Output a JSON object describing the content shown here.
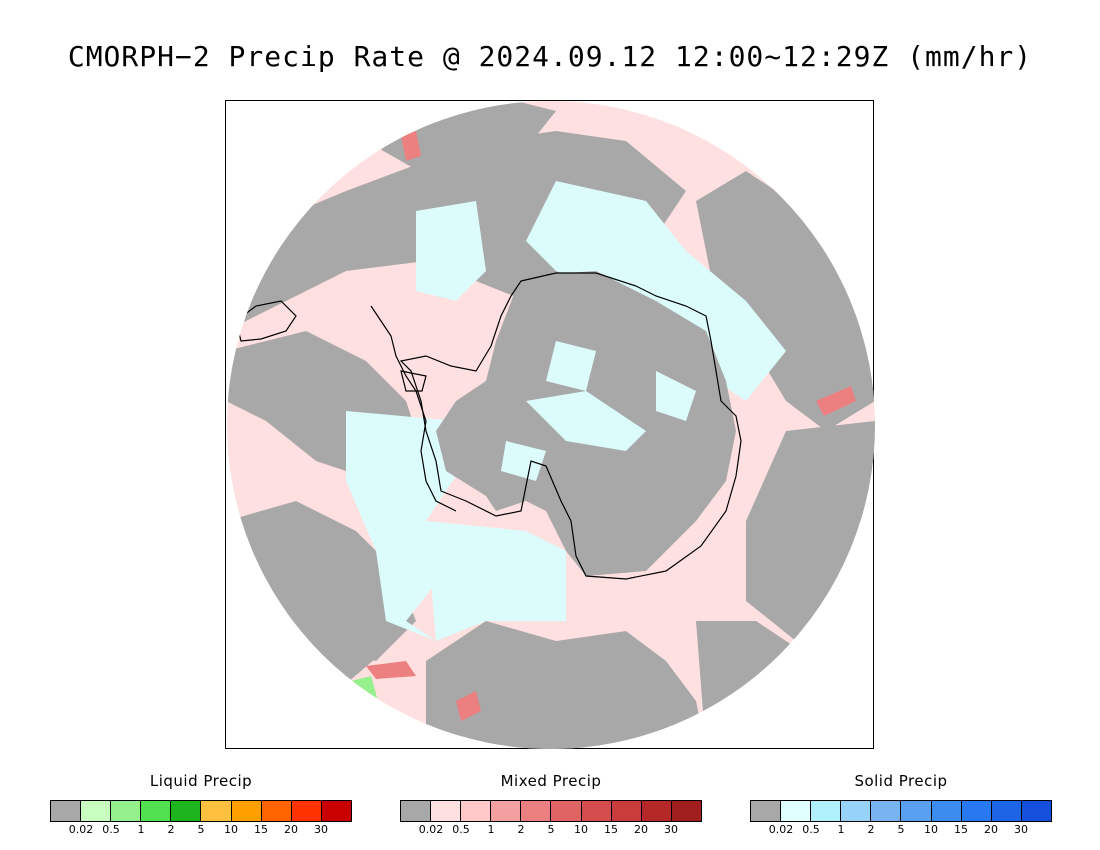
{
  "title": "CMORPH−2 Precip Rate @ 2024.09.12 12:00~12:29Z (mm/hr)",
  "colors": {
    "no_precip": "#a8a8a8",
    "ocean_light": "#ffe0e0",
    "solid_light": "#dcfcfc",
    "coastline": "#000000"
  },
  "legends": [
    {
      "title": "Liquid Precip",
      "colors": [
        "#a8a8a8",
        "#c8ffc0",
        "#96f08c",
        "#50e050",
        "#1eb41e",
        "#ffc040",
        "#ffa000",
        "#ff6400",
        "#ff3200",
        "#c80000"
      ],
      "ticks": [
        "0.02",
        "0.5",
        "1",
        "2",
        "5",
        "10",
        "15",
        "20",
        "30"
      ]
    },
    {
      "title": "Mixed Precip",
      "colors": [
        "#a8a8a8",
        "#ffe0e0",
        "#ffc8c8",
        "#f4a0a0",
        "#ec8080",
        "#e06464",
        "#d44c4c",
        "#c83c3c",
        "#b42828",
        "#a01e1e"
      ],
      "ticks": [
        "0.02",
        "0.5",
        "1",
        "2",
        "5",
        "10",
        "15",
        "20",
        "30"
      ]
    },
    {
      "title": "Solid Precip",
      "colors": [
        "#a8a8a8",
        "#e0ffff",
        "#b0f0fa",
        "#96d2fa",
        "#78b4f0",
        "#5aa0f0",
        "#3c8cf0",
        "#2878f0",
        "#1e64e6",
        "#1450dc"
      ],
      "ticks": [
        "0.02",
        "0.5",
        "1",
        "2",
        "5",
        "10",
        "15",
        "20",
        "30"
      ]
    }
  ]
}
